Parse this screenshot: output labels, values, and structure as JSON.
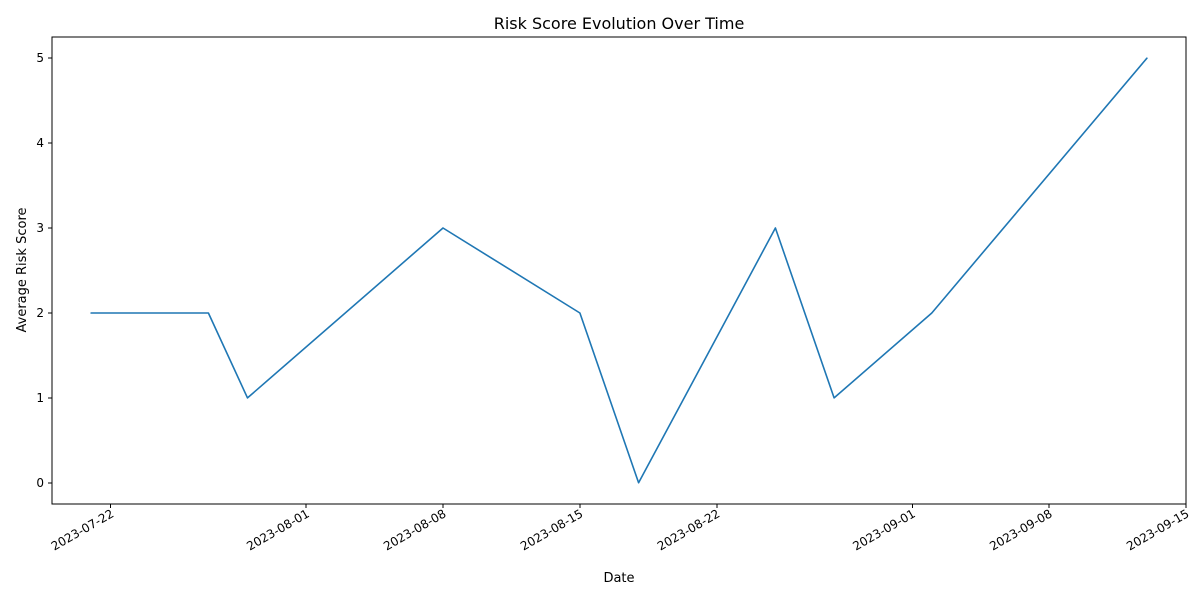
{
  "chart_data": {
    "type": "line",
    "title": "Risk Score Evolution Over Time",
    "xlabel": "Date",
    "ylabel": "Average Risk Score",
    "x_ticks": [
      "2023-07-22",
      "2023-08-01",
      "2023-08-08",
      "2023-08-15",
      "2023-08-22",
      "2023-09-01",
      "2023-09-08",
      "2023-09-15"
    ],
    "y_ticks": [
      0,
      1,
      2,
      3,
      4,
      5
    ],
    "xlim": [
      "2023-07-19",
      "2023-09-15"
    ],
    "ylim": [
      -0.25,
      5.25
    ],
    "grid": false,
    "series": [
      {
        "color": "#1f77b4",
        "points": [
          {
            "x": "2023-07-21",
            "y": 2
          },
          {
            "x": "2023-07-27",
            "y": 2
          },
          {
            "x": "2023-07-29",
            "y": 1
          },
          {
            "x": "2023-08-08",
            "y": 3
          },
          {
            "x": "2023-08-15",
            "y": 2
          },
          {
            "x": "2023-08-18",
            "y": 0
          },
          {
            "x": "2023-08-25",
            "y": 3
          },
          {
            "x": "2023-08-28",
            "y": 1
          },
          {
            "x": "2023-09-02",
            "y": 2
          },
          {
            "x": "2023-09-13",
            "y": 5
          }
        ]
      }
    ]
  }
}
